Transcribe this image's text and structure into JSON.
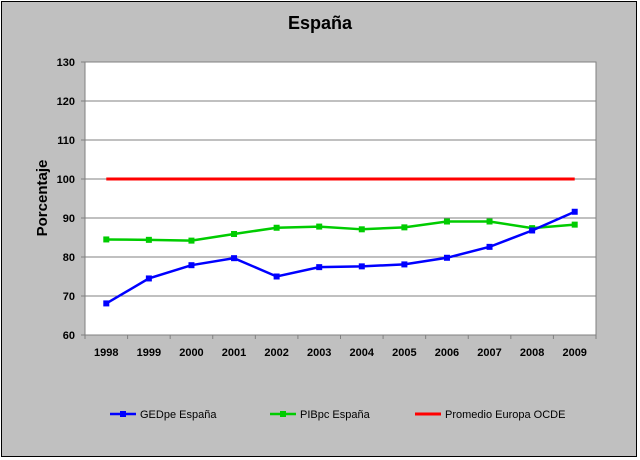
{
  "chart_data": {
    "type": "line",
    "title": "España",
    "xlabel": "",
    "ylabel": "Porcentaje",
    "ylim": [
      60,
      130
    ],
    "yticks": [
      60,
      70,
      80,
      90,
      100,
      110,
      120,
      130
    ],
    "categories": [
      "1998",
      "1999",
      "2000",
      "2001",
      "2002",
      "2003",
      "2004",
      "2005",
      "2006",
      "2007",
      "2008",
      "2009"
    ],
    "series": [
      {
        "name": "GEDpe España",
        "color": "#0000ff",
        "marker": "square",
        "values": [
          68.1,
          74.5,
          77.9,
          79.7,
          75.0,
          77.4,
          77.6,
          78.1,
          79.8,
          82.6,
          86.8,
          91.6
        ]
      },
      {
        "name": "PIBpc España",
        "color": "#00cc00",
        "marker": "square",
        "values": [
          84.5,
          84.4,
          84.2,
          85.9,
          87.5,
          87.8,
          87.1,
          87.6,
          89.1,
          89.1,
          87.4,
          88.3
        ]
      },
      {
        "name": "Promedio Europa OCDE",
        "color": "#ff0000",
        "marker": "none",
        "values": [
          100,
          100,
          100,
          100,
          100,
          100,
          100,
          100,
          100,
          100,
          100,
          100
        ]
      }
    ],
    "grid": "horizontal",
    "legend": "bottom"
  }
}
